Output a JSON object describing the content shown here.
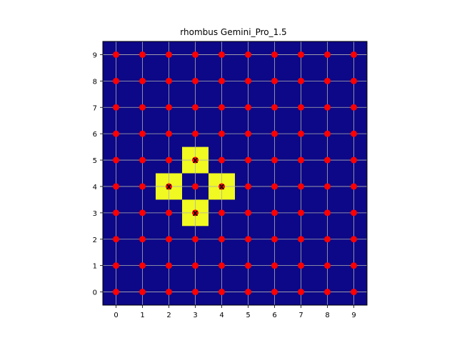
{
  "chart_data": {
    "type": "scatter",
    "title": "rhombus Gemini_Pro_1.5",
    "xlabel": "",
    "ylabel": "",
    "xlim": [
      -0.5,
      9.5
    ],
    "ylim": [
      -0.5,
      9.5
    ],
    "x_ticks": [
      0,
      1,
      2,
      3,
      4,
      5,
      6,
      7,
      8,
      9
    ],
    "y_ticks": [
      0,
      1,
      2,
      3,
      4,
      5,
      6,
      7,
      8,
      9
    ],
    "grid": true,
    "background_color": "#0d0887",
    "highlight_color": "#f0f921",
    "point_color": "#ff0000",
    "highlighted_cells": [
      {
        "x": 3,
        "y": 5,
        "label": "X"
      },
      {
        "x": 2,
        "y": 4,
        "label": "X"
      },
      {
        "x": 4,
        "y": 4,
        "label": "X"
      },
      {
        "x": 3,
        "y": 3,
        "label": "X"
      }
    ],
    "points": "all integer grid points (x, y) for x in 0..9 and y in 0..9"
  }
}
